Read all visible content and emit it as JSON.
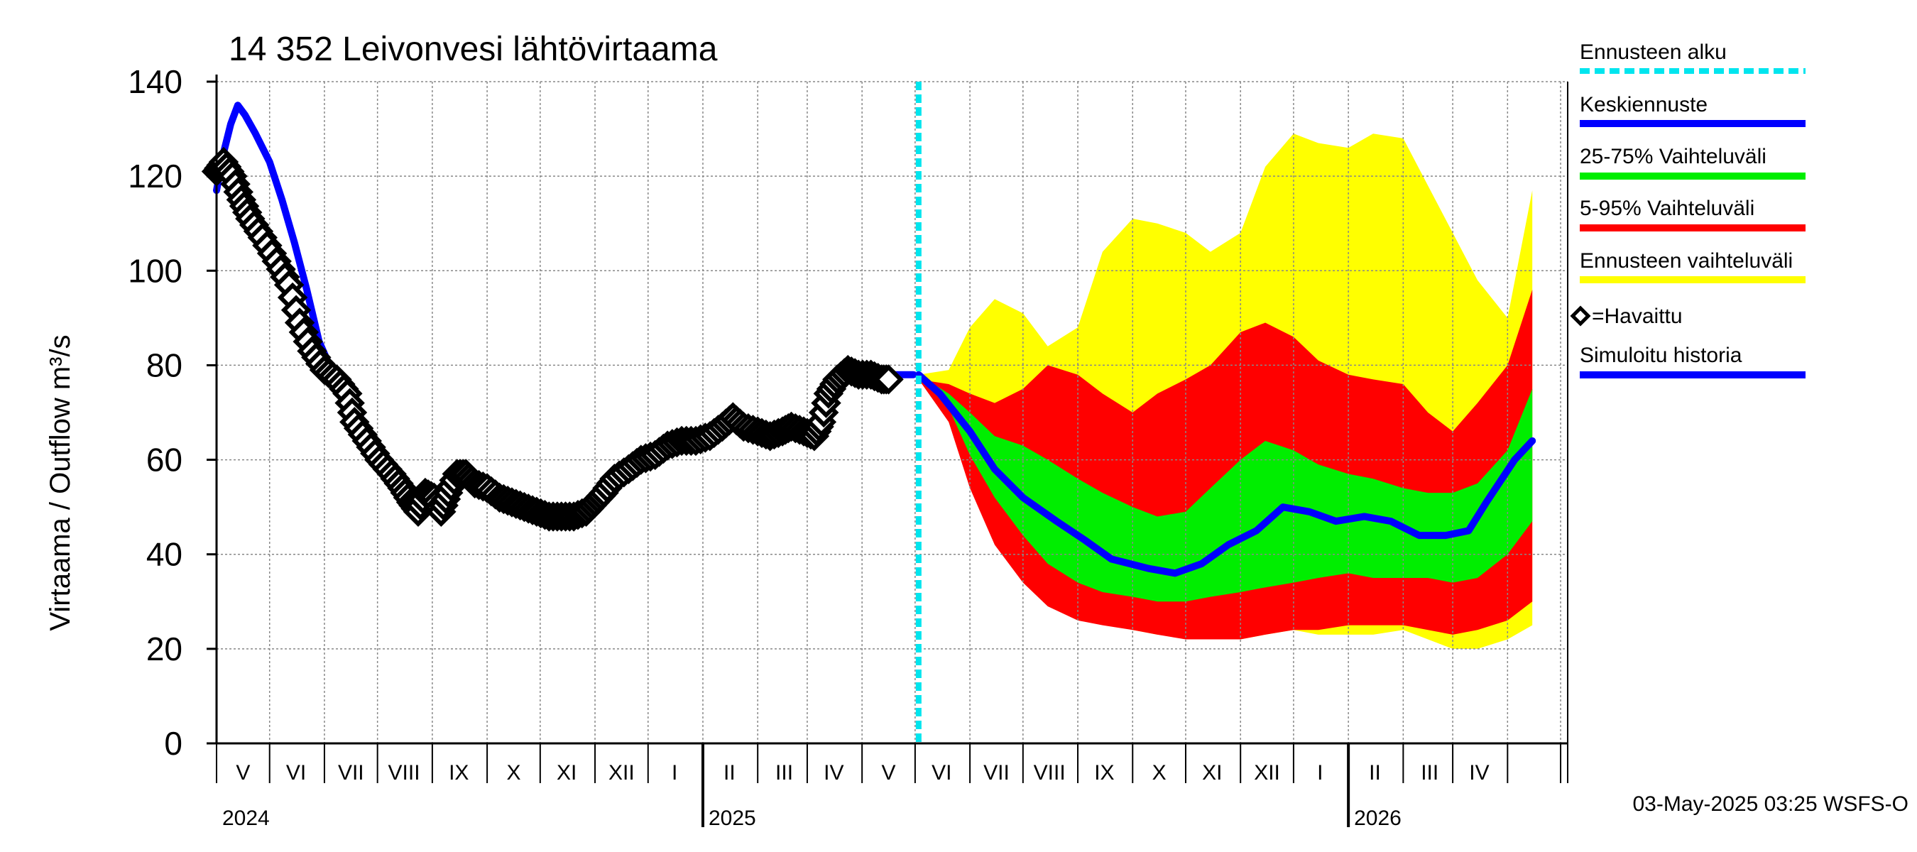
{
  "chart_data": {
    "type": "area",
    "title": "14 352 Leivonvesi lähtövirtaama",
    "ylabel": "Virtaama / Outflow    m³/s",
    "ylim": [
      0,
      140
    ],
    "yticks": [
      0,
      20,
      40,
      60,
      80,
      100,
      120,
      140
    ],
    "xlim": [
      "2024-04-01",
      "2026-05-05"
    ],
    "month_labels": [
      {
        "date": "2024-04-16",
        "label": "V"
      },
      {
        "date": "2024-05-16",
        "label": "VI"
      },
      {
        "date": "2024-06-16",
        "label": "VII"
      },
      {
        "date": "2024-07-16",
        "label": "VIII"
      },
      {
        "date": "2024-08-16",
        "label": "IX"
      },
      {
        "date": "2024-09-16",
        "label": "X"
      },
      {
        "date": "2024-10-16",
        "label": "XI"
      },
      {
        "date": "2024-11-16",
        "label": "XII"
      },
      {
        "date": "2024-12-16",
        "label": "I"
      },
      {
        "date": "2025-01-16",
        "label": "II"
      },
      {
        "date": "2025-02-16",
        "label": "III"
      },
      {
        "date": "2025-03-16",
        "label": "IV"
      },
      {
        "date": "2025-04-16",
        "label": "V"
      },
      {
        "date": "2025-05-16",
        "label": "VI"
      },
      {
        "date": "2025-06-16",
        "label": "VII"
      },
      {
        "date": "2025-07-16",
        "label": "VIII"
      },
      {
        "date": "2025-08-16",
        "label": "IX"
      },
      {
        "date": "2025-09-16",
        "label": "X"
      },
      {
        "date": "2025-10-16",
        "label": "XI"
      },
      {
        "date": "2025-11-16",
        "label": "XII"
      },
      {
        "date": "2025-12-16",
        "label": "I"
      },
      {
        "date": "2026-01-16",
        "label": "II"
      },
      {
        "date": "2026-02-16",
        "label": "III"
      },
      {
        "date": "2026-03-16",
        "label": "IV"
      }
    ],
    "year_labels": [
      {
        "date": "2024-01-01",
        "label": "2024"
      },
      {
        "date": "2025-01-01",
        "label": "2025"
      },
      {
        "date": "2026-01-01",
        "label": "2026"
      }
    ],
    "forecast_start": "2025-05-03",
    "legend": [
      {
        "label": "Ennusteen alku",
        "color": "#00e5ee",
        "style": "dashed"
      },
      {
        "label": "Keskiennuste",
        "color": "#0000ff",
        "style": "line"
      },
      {
        "label": "25-75% Vaihteluväli",
        "color": "#00ee00",
        "style": "line"
      },
      {
        "label": "5-95% Vaihteluväli",
        "color": "#ff0000",
        "style": "line"
      },
      {
        "label": "Ennusteen vaihteluväli",
        "color": "#ffff00",
        "style": "line"
      },
      {
        "label": "=Havaittu",
        "color": "#000000",
        "style": "diamond"
      },
      {
        "label": "Simuloitu historia",
        "color": "#0000ff",
        "style": "line"
      }
    ],
    "footer": "03-May-2025 03:25 WSFS-O",
    "series": [
      {
        "name": "=Havaittu",
        "kind": "markers",
        "color": "#000000",
        "points": [
          [
            "2024-04-01",
            121
          ],
          [
            "2024-04-05",
            123
          ],
          [
            "2024-04-10",
            120
          ],
          [
            "2024-04-15",
            115
          ],
          [
            "2024-04-20",
            111
          ],
          [
            "2024-04-27",
            107
          ],
          [
            "2024-05-05",
            102
          ],
          [
            "2024-05-12",
            97
          ],
          [
            "2024-05-18",
            89
          ],
          [
            "2024-05-25",
            83
          ],
          [
            "2024-06-01",
            79
          ],
          [
            "2024-06-08",
            77
          ],
          [
            "2024-06-14",
            74
          ],
          [
            "2024-06-18",
            68
          ],
          [
            "2024-06-25",
            64
          ],
          [
            "2024-07-02",
            60
          ],
          [
            "2024-07-09",
            57
          ],
          [
            "2024-07-15",
            54
          ],
          [
            "2024-07-20",
            51
          ],
          [
            "2024-07-24",
            49
          ],
          [
            "2024-07-28",
            53
          ],
          [
            "2024-08-02",
            52
          ],
          [
            "2024-08-06",
            49
          ],
          [
            "2024-08-10",
            53
          ],
          [
            "2024-08-15",
            57
          ],
          [
            "2024-08-20",
            57
          ],
          [
            "2024-08-25",
            55
          ],
          [
            "2024-09-01",
            54
          ],
          [
            "2024-09-08",
            52
          ],
          [
            "2024-09-15",
            51
          ],
          [
            "2024-09-22",
            50
          ],
          [
            "2024-09-29",
            49
          ],
          [
            "2024-10-06",
            48
          ],
          [
            "2024-10-13",
            48
          ],
          [
            "2024-10-20",
            48
          ],
          [
            "2024-10-27",
            49
          ],
          [
            "2024-11-01",
            51
          ],
          [
            "2024-11-06",
            53
          ],
          [
            "2024-11-12",
            56
          ],
          [
            "2024-11-20",
            58
          ],
          [
            "2024-11-27",
            60
          ],
          [
            "2024-12-05",
            61
          ],
          [
            "2024-12-12",
            63
          ],
          [
            "2024-12-20",
            64
          ],
          [
            "2024-12-28",
            64
          ],
          [
            "2025-01-05",
            65
          ],
          [
            "2025-01-12",
            67
          ],
          [
            "2025-01-18",
            69
          ],
          [
            "2025-01-24",
            67
          ],
          [
            "2025-02-01",
            66
          ],
          [
            "2025-02-08",
            65
          ],
          [
            "2025-02-15",
            66
          ],
          [
            "2025-02-20",
            67
          ],
          [
            "2025-02-27",
            66
          ],
          [
            "2025-03-05",
            65
          ],
          [
            "2025-03-09",
            68
          ],
          [
            "2025-03-13",
            74
          ],
          [
            "2025-03-18",
            77
          ],
          [
            "2025-03-24",
            79
          ],
          [
            "2025-03-30",
            78
          ],
          [
            "2025-04-06",
            78
          ],
          [
            "2025-04-12",
            77
          ],
          [
            "2025-04-16",
            77
          ]
        ]
      },
      {
        "name": "Simuloitu historia",
        "kind": "line",
        "color": "#0000ff",
        "points": [
          [
            "2024-04-01",
            117
          ],
          [
            "2024-04-05",
            125
          ],
          [
            "2024-04-09",
            131
          ],
          [
            "2024-04-13",
            135
          ],
          [
            "2024-04-17",
            133
          ],
          [
            "2024-04-23",
            129
          ],
          [
            "2024-05-01",
            123
          ],
          [
            "2024-05-08",
            115
          ],
          [
            "2024-05-15",
            106
          ],
          [
            "2024-05-22",
            96
          ],
          [
            "2024-05-29",
            85
          ],
          [
            "2024-06-05",
            79
          ],
          [
            "2024-06-12",
            76
          ],
          [
            "2024-06-20",
            70
          ],
          [
            "2024-07-01",
            62
          ],
          [
            "2024-07-10",
            58
          ],
          [
            "2024-07-20",
            53
          ],
          [
            "2024-07-28",
            52
          ],
          [
            "2024-08-08",
            52
          ],
          [
            "2024-08-15",
            55
          ],
          [
            "2024-08-25",
            55
          ],
          [
            "2024-09-10",
            52
          ],
          [
            "2024-09-25",
            50
          ],
          [
            "2024-10-10",
            48
          ],
          [
            "2024-10-25",
            49
          ],
          [
            "2024-11-10",
            55
          ],
          [
            "2024-11-25",
            59
          ],
          [
            "2024-12-10",
            62
          ],
          [
            "2024-12-25",
            64
          ],
          [
            "2025-01-10",
            66
          ],
          [
            "2025-01-20",
            68
          ],
          [
            "2025-02-05",
            65
          ],
          [
            "2025-02-20",
            66
          ],
          [
            "2025-03-05",
            65
          ],
          [
            "2025-03-15",
            73
          ],
          [
            "2025-03-25",
            79
          ],
          [
            "2025-04-10",
            78
          ],
          [
            "2025-04-30",
            78
          ]
        ]
      },
      {
        "name": "Keskiennuste",
        "kind": "line",
        "color": "#0000ff",
        "points": [
          [
            "2025-05-03",
            78
          ],
          [
            "2025-05-15",
            74
          ],
          [
            "2025-06-01",
            66
          ],
          [
            "2025-06-15",
            58
          ],
          [
            "2025-07-01",
            52
          ],
          [
            "2025-07-20",
            47
          ],
          [
            "2025-08-05",
            43
          ],
          [
            "2025-08-20",
            39
          ],
          [
            "2025-09-10",
            37
          ],
          [
            "2025-09-25",
            36
          ],
          [
            "2025-10-10",
            38
          ],
          [
            "2025-10-25",
            42
          ],
          [
            "2025-11-10",
            45
          ],
          [
            "2025-11-25",
            50
          ],
          [
            "2025-12-10",
            49
          ],
          [
            "2025-12-25",
            47
          ],
          [
            "2026-01-10",
            48
          ],
          [
            "2026-01-25",
            47
          ],
          [
            "2026-02-10",
            44
          ],
          [
            "2026-02-25",
            44
          ],
          [
            "2026-03-10",
            45
          ],
          [
            "2026-03-20",
            51
          ],
          [
            "2026-04-05",
            60
          ],
          [
            "2026-04-15",
            64
          ]
        ]
      }
    ],
    "bands": [
      {
        "name": "Ennusteen vaihteluväli",
        "color": "#ffff00",
        "x": [
          "2025-05-03",
          "2025-05-20",
          "2025-06-01",
          "2025-06-15",
          "2025-07-01",
          "2025-07-15",
          "2025-08-01",
          "2025-08-15",
          "2025-09-01",
          "2025-09-15",
          "2025-10-01",
          "2025-10-15",
          "2025-11-01",
          "2025-11-15",
          "2025-12-01",
          "2025-12-15",
          "2026-01-01",
          "2026-01-15",
          "2026-02-01",
          "2026-02-15",
          "2026-03-01",
          "2026-03-15",
          "2026-04-01",
          "2026-04-15"
        ],
        "upper": [
          78,
          79,
          88,
          94,
          91,
          84,
          88,
          104,
          111,
          110,
          108,
          104,
          108,
          122,
          129,
          127,
          126,
          129,
          128,
          118,
          108,
          98,
          90,
          117
        ],
        "lower": [
          78,
          68,
          58,
          46,
          38,
          32,
          28,
          26,
          24,
          23,
          23,
          22,
          22,
          23,
          24,
          23,
          23,
          23,
          24,
          22,
          20,
          20,
          22,
          25
        ]
      },
      {
        "name": "5-95% Vaihteluväli",
        "color": "#ff0000",
        "x": [
          "2025-05-03",
          "2025-05-20",
          "2025-06-01",
          "2025-06-15",
          "2025-07-01",
          "2025-07-15",
          "2025-08-01",
          "2025-08-15",
          "2025-09-01",
          "2025-09-15",
          "2025-10-01",
          "2025-10-15",
          "2025-11-01",
          "2025-11-15",
          "2025-12-01",
          "2025-12-15",
          "2026-01-01",
          "2026-01-15",
          "2026-02-01",
          "2026-02-15",
          "2026-03-01",
          "2026-03-15",
          "2026-04-01",
          "2026-04-15"
        ],
        "upper": [
          77,
          76,
          74,
          72,
          75,
          80,
          78,
          74,
          70,
          74,
          77,
          80,
          87,
          89,
          86,
          81,
          78,
          77,
          76,
          70,
          66,
          72,
          80,
          96
        ],
        "lower": [
          77,
          68,
          54,
          42,
          34,
          29,
          26,
          25,
          24,
          23,
          22,
          22,
          22,
          23,
          24,
          24,
          25,
          25,
          25,
          24,
          23,
          24,
          26,
          30
        ]
      },
      {
        "name": "25-75% Vaihteluväli",
        "color": "#00ee00",
        "x": [
          "2025-05-03",
          "2025-05-20",
          "2025-06-01",
          "2025-06-15",
          "2025-07-01",
          "2025-07-15",
          "2025-08-01",
          "2025-08-15",
          "2025-09-01",
          "2025-09-15",
          "2025-10-01",
          "2025-10-15",
          "2025-11-01",
          "2025-11-15",
          "2025-12-01",
          "2025-12-15",
          "2026-01-01",
          "2026-01-15",
          "2026-02-01",
          "2026-02-15",
          "2026-03-01",
          "2026-03-15",
          "2026-04-01",
          "2026-04-15"
        ],
        "upper": [
          78,
          74,
          70,
          65,
          63,
          60,
          56,
          53,
          50,
          48,
          49,
          54,
          60,
          64,
          62,
          59,
          57,
          56,
          54,
          53,
          53,
          55,
          62,
          75
        ],
        "lower": [
          78,
          71,
          61,
          52,
          44,
          38,
          34,
          32,
          31,
          30,
          30,
          31,
          32,
          33,
          34,
          35,
          36,
          35,
          35,
          35,
          34,
          35,
          40,
          47
        ]
      }
    ]
  }
}
